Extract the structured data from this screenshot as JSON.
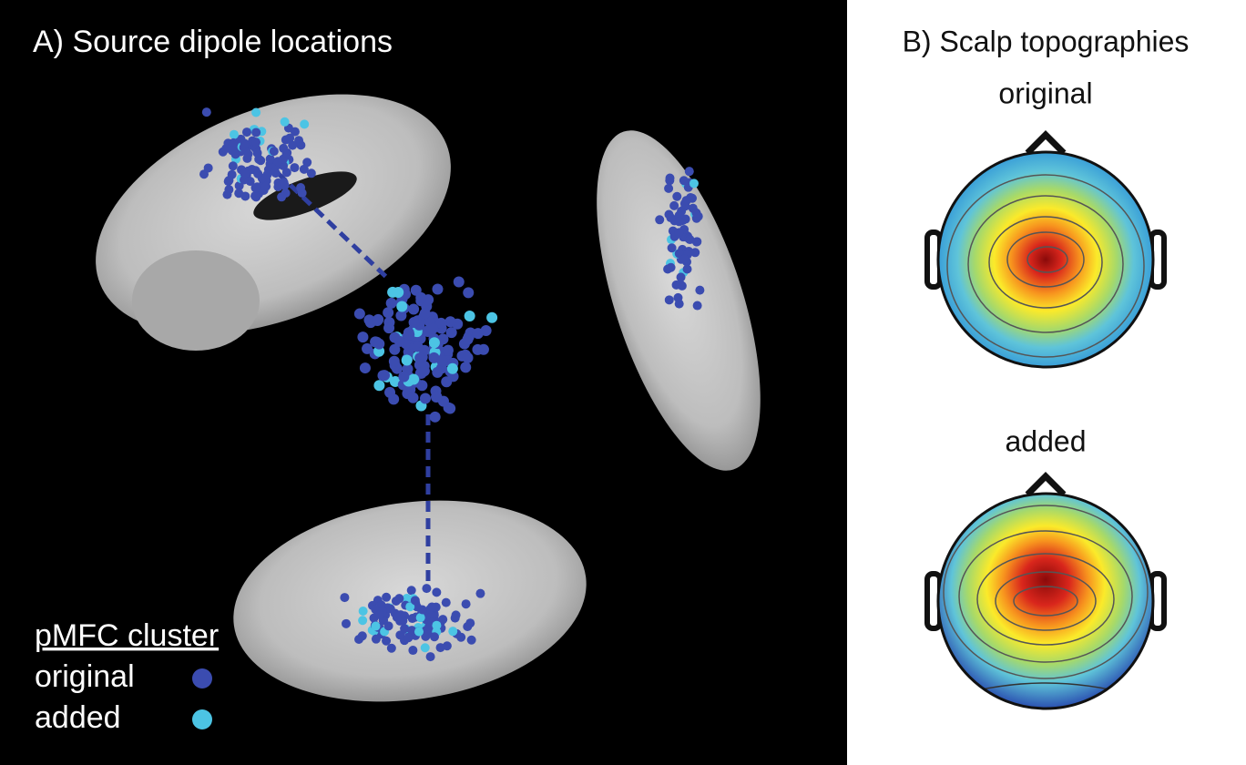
{
  "panel_a": {
    "title": "A) Source dipole locations",
    "legend": {
      "title": "pMFC cluster",
      "items": [
        {
          "label": "original",
          "color": "#3b4cb0"
        },
        {
          "label": "added",
          "color": "#4cc4e4"
        }
      ]
    }
  },
  "panel_b": {
    "title": "B) Scalp topographies",
    "maps": [
      "original",
      "added"
    ]
  }
}
